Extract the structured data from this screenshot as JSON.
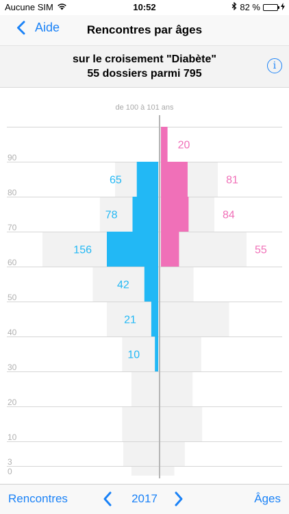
{
  "status_bar": {
    "carrier": "Aucune SIM",
    "time": "10:52",
    "battery": "82 %",
    "battery_level": 0.82,
    "icons": [
      "wifi-icon",
      "bluetooth-icon",
      "battery-icon",
      "charging-icon"
    ]
  },
  "nav": {
    "back_label": "Aide",
    "title": "Rencontres par âges"
  },
  "subtitle": {
    "line1": "sur le croisement \"Diabète\"",
    "line2": "55 dossiers parmi 795",
    "info_glyph": "i"
  },
  "colors": {
    "accent": "#1a82f7",
    "male": "#22b8f5",
    "female": "#f070b8",
    "total_bg": "#f2f2f2",
    "label_gray": "#a9a9a9"
  },
  "chart_data": {
    "type": "bar",
    "orientation": "horizontal-pyramid",
    "title": "de 100 à 101 ans",
    "age_ticks": [
      "90",
      "80",
      "70",
      "60",
      "50",
      "40",
      "30",
      "20",
      "10",
      "3",
      "0"
    ],
    "groups": [
      "90-99",
      "80-89",
      "70-79",
      "60-69",
      "50-59",
      "40-49",
      "30-39",
      "20-29",
      "10-19",
      "3-9",
      "0-2"
    ],
    "series": [
      {
        "name": "left",
        "color": "#22b8f5",
        "values": [
          0,
          65,
          78,
          156,
          42,
          21,
          10,
          0,
          0,
          0,
          0
        ],
        "labels": [
          "",
          "65",
          "78",
          "156",
          "42",
          "21",
          "10",
          "",
          "",
          "",
          ""
        ]
      },
      {
        "name": "right",
        "color": "#f070b8",
        "values": [
          20,
          81,
          84,
          55,
          0,
          0,
          0,
          0,
          0,
          0,
          0
        ],
        "labels": [
          "20",
          "81",
          "84",
          "55",
          "",
          "",
          "",
          "",
          "",
          "",
          ""
        ]
      }
    ],
    "totals_left_fraction": [
      0,
      0.38,
      0.51,
      1.0,
      0.57,
      0.45,
      0.32,
      0.24,
      0.32,
      0.31,
      0.24
    ],
    "totals_right_fraction": [
      0.02,
      0.67,
      0.63,
      1.0,
      0.39,
      0.8,
      0.48,
      0.38,
      0.49,
      0.29,
      0.17
    ]
  },
  "toolbar": {
    "left_label": "Rencontres",
    "year": "2017",
    "right_label": "Âges"
  }
}
